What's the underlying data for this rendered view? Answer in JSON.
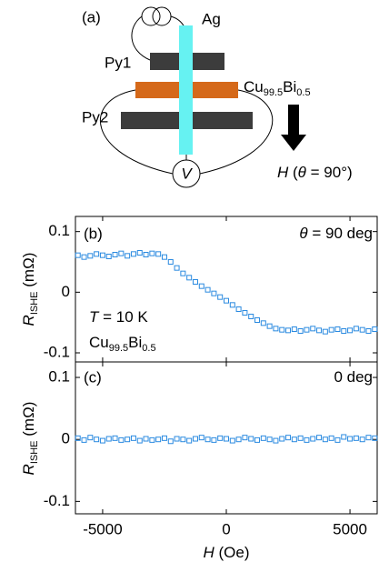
{
  "diagram": {
    "panel_label": "(a)",
    "labels": {
      "ag": "Ag",
      "py1": "Py1",
      "cu": [
        "Cu",
        "99.5",
        "Bi",
        "0.5"
      ],
      "py2": "Py2",
      "v": "V",
      "field": [
        "H",
        " (",
        "θ",
        " = 90°)"
      ]
    }
  },
  "chart_data": [
    {
      "type": "scatter",
      "panel_label": "(b)",
      "annotations": [
        [
          "θ",
          " = 90 deg"
        ],
        [
          "T",
          " = 10 K"
        ],
        [
          "Cu",
          "99.5",
          "Bi",
          "0.5"
        ]
      ],
      "y_label": [
        "R",
        "ISHE",
        " (mΩ)"
      ],
      "color": "#2a8ae0",
      "marker": "square",
      "xlim": [
        -6100,
        6100
      ],
      "ylim": [
        -0.115,
        0.125
      ],
      "yticks": [
        0.1,
        0,
        -0.1
      ],
      "x": [
        -6000,
        -5750,
        -5500,
        -5250,
        -5000,
        -4750,
        -4500,
        -4250,
        -4000,
        -3750,
        -3500,
        -3250,
        -3000,
        -2750,
        -2500,
        -2250,
        -2000,
        -1750,
        -1500,
        -1250,
        -1000,
        -750,
        -500,
        -250,
        0,
        250,
        500,
        750,
        1000,
        1250,
        1500,
        1750,
        2000,
        2250,
        2500,
        2750,
        3000,
        3250,
        3500,
        3750,
        4000,
        4250,
        4500,
        4750,
        5000,
        5250,
        5500,
        5750,
        6000
      ],
      "values": [
        0.061,
        0.058,
        0.06,
        0.063,
        0.061,
        0.059,
        0.062,
        0.064,
        0.06,
        0.063,
        0.065,
        0.062,
        0.064,
        0.063,
        0.058,
        0.05,
        0.04,
        0.031,
        0.024,
        0.017,
        0.01,
        0.004,
        -0.002,
        -0.008,
        -0.014,
        -0.021,
        -0.028,
        -0.034,
        -0.04,
        -0.046,
        -0.051,
        -0.056,
        -0.06,
        -0.062,
        -0.063,
        -0.061,
        -0.064,
        -0.062,
        -0.06,
        -0.063,
        -0.065,
        -0.062,
        -0.061,
        -0.064,
        -0.063,
        -0.06,
        -0.062,
        -0.064,
        -0.061
      ]
    },
    {
      "type": "scatter",
      "panel_label": "(c)",
      "annotations": [
        [
          "0 deg"
        ]
      ],
      "y_label": [
        "R",
        "ISHE",
        " (mΩ)"
      ],
      "x_label": [
        "H",
        " (Oe)"
      ],
      "color": "#2a8ae0",
      "marker": "square",
      "xlim": [
        -6100,
        6100
      ],
      "ylim": [
        -0.12,
        0.125
      ],
      "yticks": [
        0.1,
        0,
        -0.1
      ],
      "xticks": [
        -5000,
        0,
        5000
      ],
      "x": [
        -6000,
        -5750,
        -5500,
        -5250,
        -5000,
        -4750,
        -4500,
        -4250,
        -4000,
        -3750,
        -3500,
        -3250,
        -3000,
        -2750,
        -2500,
        -2250,
        -2000,
        -1750,
        -1500,
        -1250,
        -1000,
        -750,
        -500,
        -250,
        0,
        250,
        500,
        750,
        1000,
        1250,
        1500,
        1750,
        2000,
        2250,
        2500,
        2750,
        3000,
        3250,
        3500,
        3750,
        4000,
        4250,
        4500,
        4750,
        5000,
        5250,
        5500,
        5750,
        6000
      ],
      "values": [
        0.002,
        -0.001,
        0.003,
        0.0,
        -0.002,
        0.001,
        0.002,
        -0.001,
        0.0,
        0.002,
        -0.002,
        0.001,
        -0.001,
        0.0,
        0.002,
        -0.003,
        0.001,
        0.0,
        -0.002,
        0.001,
        0.003,
        0.0,
        -0.001,
        0.002,
        0.001,
        -0.002,
        0.0,
        0.003,
        0.001,
        -0.001,
        0.002,
        0.0,
        -0.002,
        0.001,
        0.003,
        0.0,
        0.002,
        -0.001,
        0.001,
        0.003,
        0.0,
        0.002,
        -0.001,
        0.004,
        0.001,
        0.002,
        0.0,
        0.003,
        0.002
      ]
    }
  ]
}
